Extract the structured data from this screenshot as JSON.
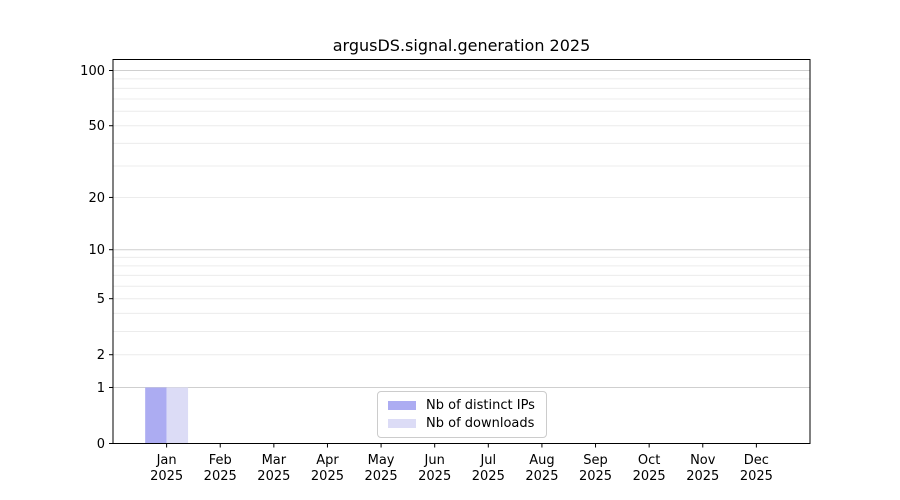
{
  "title": "argusDS.signal.generation 2025",
  "chart_data": {
    "type": "bar",
    "title": "argusDS.signal.generation 2025",
    "xlabel": "",
    "ylabel": "",
    "categories": [
      {
        "month": "Jan",
        "year": "2025"
      },
      {
        "month": "Feb",
        "year": "2025"
      },
      {
        "month": "Mar",
        "year": "2025"
      },
      {
        "month": "Apr",
        "year": "2025"
      },
      {
        "month": "May",
        "year": "2025"
      },
      {
        "month": "Jun",
        "year": "2025"
      },
      {
        "month": "Jul",
        "year": "2025"
      },
      {
        "month": "Aug",
        "year": "2025"
      },
      {
        "month": "Sep",
        "year": "2025"
      },
      {
        "month": "Oct",
        "year": "2025"
      },
      {
        "month": "Nov",
        "year": "2025"
      },
      {
        "month": "Dec",
        "year": "2025"
      }
    ],
    "series": [
      {
        "name": "Nb of distinct IPs",
        "color": "#acacf2",
        "values": [
          1,
          0,
          0,
          0,
          0,
          0,
          0,
          0,
          0,
          0,
          0,
          0
        ]
      },
      {
        "name": "Nb of downloads",
        "color": "#dcdcf6",
        "values": [
          1,
          0,
          0,
          0,
          0,
          0,
          0,
          0,
          0,
          0,
          0,
          0
        ]
      }
    ],
    "yscale": "symlog",
    "yticks": [
      0,
      1,
      2,
      5,
      10,
      20,
      50,
      100
    ],
    "ylim": [
      0,
      113
    ],
    "grid": {
      "major_ticks": [
        1,
        10,
        100
      ],
      "minor_ticks": [
        2,
        3,
        4,
        5,
        6,
        7,
        8,
        9,
        20,
        30,
        40,
        50,
        60,
        70,
        80,
        90
      ],
      "major_color": "#cfcfcf",
      "minor_color": "#ececec"
    },
    "legend_position": "lower center",
    "axis_color": "#000000",
    "text_color": "#000000",
    "background": "#ffffff"
  }
}
